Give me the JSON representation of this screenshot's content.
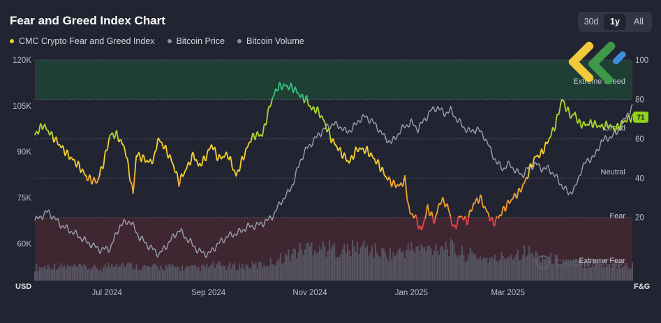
{
  "header": {
    "title": "Fear and Greed Index Chart",
    "range_buttons": [
      "30d",
      "1y",
      "All"
    ],
    "active_range": "1y"
  },
  "legend": [
    {
      "label": "CMC Crypto Fear and Greed Index",
      "color": "#f3d02e"
    },
    {
      "label": "Bitcoin Price",
      "color": "#8e93a3"
    },
    {
      "label": "Bitcoin Volume",
      "color": "#8e93a3"
    }
  ],
  "watermark": "CoinMarketCap",
  "chart_data": {
    "type": "line",
    "title": "Fear and Greed Index Chart",
    "left_axis": {
      "unit": "USD",
      "ticks": [
        "120K",
        "105K",
        "90K",
        "75K",
        "60K"
      ],
      "ylim": [
        48000,
        120000
      ]
    },
    "right_axis": {
      "unit": "F&G",
      "ticks": [
        "100",
        "80",
        "60",
        "40",
        "20"
      ],
      "ylim": [
        -12,
        100
      ]
    },
    "x_ticks": [
      "Jul 2024",
      "Sep 2024",
      "Nov 2024",
      "Jan 2025",
      "Mar 2025"
    ],
    "x_tick_days": [
      44,
      106,
      168,
      230,
      289
    ],
    "x_range_days": [
      0,
      365
    ],
    "zones": [
      {
        "label": "Extreme Greed",
        "from": 80,
        "to": 100,
        "color": "#1f3f36"
      },
      {
        "label": "Greed",
        "from": 60,
        "to": 80
      },
      {
        "label": "Neutral",
        "from": 40,
        "to": 60
      },
      {
        "label": "Fear",
        "from": 20,
        "to": 40
      },
      {
        "label": "Extreme Fear",
        "from": -12,
        "to": 20,
        "color": "#3e2731"
      }
    ],
    "current_value": "71",
    "series": [
      {
        "name": "CMC Crypto Fear and Greed Index",
        "x": [
          0,
          5,
          9,
          14,
          20,
          27,
          32,
          38,
          42,
          46,
          50,
          55,
          60,
          62,
          66,
          70,
          73,
          75,
          79,
          84,
          88,
          92,
          97,
          100,
          104,
          108,
          112,
          118,
          123,
          127,
          132,
          135,
          139,
          144,
          148,
          152,
          157,
          160,
          163,
          166,
          169,
          172,
          176,
          181,
          187,
          192,
          197,
          203,
          210,
          215,
          219,
          223,
          226,
          229,
          232,
          236,
          240,
          244,
          248,
          252,
          256,
          260,
          264,
          268,
          272,
          276,
          280,
          284,
          288,
          292,
          296,
          300,
          303,
          306,
          309,
          313,
          318,
          322,
          325,
          328,
          330,
          332,
          336,
          340,
          343,
          346,
          350,
          355,
          360,
          365
        ],
        "values": [
          62,
          67,
          63,
          58,
          52,
          46,
          40,
          38,
          48,
          62,
          62,
          55,
          32,
          52,
          50,
          48,
          50,
          60,
          56,
          48,
          38,
          44,
          52,
          46,
          50,
          57,
          50,
          52,
          41,
          50,
          60,
          62,
          62,
          78,
          86,
          87,
          86,
          84,
          81,
          80,
          75,
          75,
          70,
          60,
          53,
          48,
          55,
          54,
          47,
          40,
          37,
          36,
          39,
          22,
          21,
          13,
          25,
          18,
          29,
          26,
          14,
          21,
          18,
          27,
          30,
          23,
          17,
          21,
          26,
          30,
          33,
          39,
          46,
          51,
          52,
          58,
          67,
          80,
          75,
          71,
          73,
          68,
          67,
          68,
          67,
          66,
          67,
          65,
          69,
          71
        ]
      },
      {
        "name": "Bitcoin Price",
        "x": [
          0,
          8,
          16,
          24,
          32,
          40,
          46,
          52,
          58,
          64,
          70,
          76,
          82,
          88,
          94,
          100,
          106,
          112,
          118,
          124,
          130,
          136,
          142,
          146,
          150,
          154,
          158,
          162,
          166,
          170,
          174,
          178,
          182,
          186,
          190,
          194,
          198,
          202,
          206,
          210,
          214,
          218,
          222,
          226,
          230,
          234,
          238,
          242,
          246,
          250,
          254,
          258,
          262,
          266,
          270,
          274,
          278,
          282,
          286,
          290,
          294,
          298,
          302,
          306,
          310,
          314,
          318,
          322,
          326,
          330,
          334,
          338,
          342,
          346,
          350,
          354,
          358,
          362,
          365
        ],
        "values": [
          67500,
          70500,
          66000,
          63500,
          60500,
          58000,
          58500,
          66000,
          67500,
          62000,
          59000,
          56500,
          60500,
          64500,
          61000,
          57500,
          56500,
          60000,
          62500,
          63500,
          65500,
          66000,
          67500,
          69500,
          73500,
          76000,
          80000,
          87000,
          91000,
          93500,
          96000,
          98000,
          99000,
          98500,
          96500,
          97500,
          100500,
          101500,
          100000,
          97500,
          94500,
          93000,
          96000,
          98500,
          99500,
          97500,
          100500,
          103500,
          104500,
          102500,
          103500,
          100500,
          98000,
          96500,
          97500,
          95500,
          91000,
          86500,
          84500,
          86000,
          83500,
          82500,
          85000,
          86000,
          84500,
          84500,
          82000,
          79000,
          76500,
          78000,
          84500,
          87500,
          88500,
          93500,
          94500,
          95500,
          98000,
          102500,
          104500
        ]
      },
      {
        "name": "Bitcoin Volume",
        "x": [
          0,
          10,
          20,
          30,
          40,
          50,
          60,
          70,
          80,
          90,
          100,
          110,
          120,
          130,
          140,
          150,
          160,
          170,
          180,
          190,
          200,
          210,
          220,
          230,
          240,
          250,
          260,
          270,
          280,
          290,
          300,
          310,
          320,
          330,
          340,
          350,
          365
        ],
        "values": [
          26,
          30,
          28,
          27,
          24,
          38,
          30,
          27,
          28,
          26,
          25,
          31,
          28,
          30,
          33,
          45,
          60,
          72,
          66,
          62,
          70,
          58,
          54,
          66,
          64,
          74,
          56,
          50,
          42,
          54,
          60,
          48,
          42,
          36,
          34,
          32,
          30
        ]
      }
    ]
  }
}
